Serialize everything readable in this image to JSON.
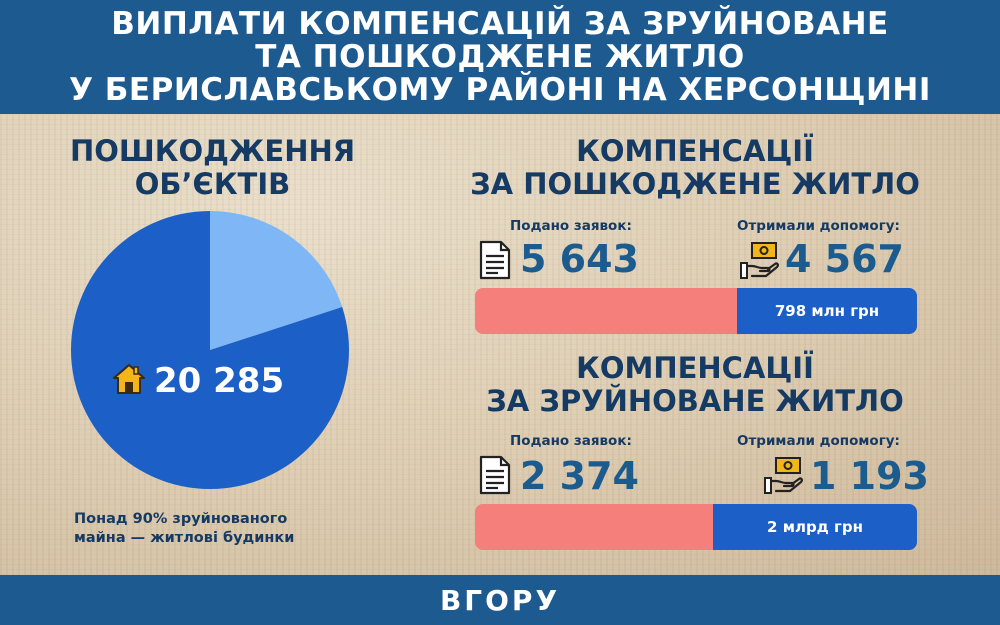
{
  "header": {
    "lines": [
      "ВИПЛАТИ КОМПЕНСАЦІЙ ЗА ЗРУЙНОВАНЕ",
      "ТА ПОШКОДЖЕНЕ ЖИТЛО",
      "У БЕРИСЛАВСЬКОМУ РАЙОНІ НА ХЕРСОНЩИНІ"
    ]
  },
  "left": {
    "title_lines": [
      "ПОШКОДЖЕННЯ",
      "ОБ’ЄКТІВ"
    ],
    "total": "20 285",
    "note_lines": [
      "Понад 90% зруйнованого",
      "майна — житлові будинки"
    ]
  },
  "damaged": {
    "title_lines": [
      "КОМПЕНСАЦІЇ",
      "ЗА ПОШКОДЖЕНЕ ЖИТЛО"
    ],
    "applied_label": "Подано заявок:",
    "applied_value": "5 643",
    "received_label": "Отримали допомогу:",
    "received_value": "4 567",
    "amount": "798 млн грн"
  },
  "destroyed": {
    "title_lines": [
      "КОМПЕНСАЦІЇ",
      "ЗА ЗРУЙНОВАНЕ ЖИТЛО"
    ],
    "applied_label": "Подано заявок:",
    "applied_value": "2 374",
    "received_label": "Отримали допомогу:",
    "received_value": "1 193",
    "amount": "2 млрд грн"
  },
  "footer": {
    "logo": "ВГОРУ"
  },
  "colors": {
    "header_bg": "#1d5a8f",
    "pie_main": "#1b5fc7",
    "pie_slice": "#7fb6f5",
    "bar_left": "#f47f7b",
    "bar_right": "#1b5fc7",
    "title_text": "#153a63"
  },
  "chart_data": [
    {
      "type": "pie",
      "title": "ПОШКОДЖЕННЯ ОБ’ЄКТІВ",
      "total": 20285,
      "slices": [
        {
          "label": "",
          "value": 0.8,
          "color": "#1b5fc7"
        },
        {
          "label": "",
          "value": 0.2,
          "color": "#7fb6f5"
        }
      ]
    }
  ]
}
